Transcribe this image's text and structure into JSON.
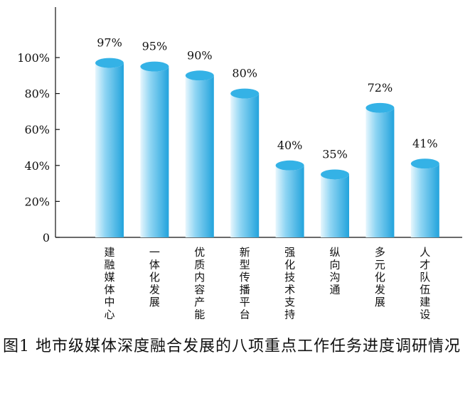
{
  "chart_data": {
    "type": "bar",
    "style": "3d-cylinder",
    "categories": [
      "建融媒体中心",
      "一体化发展",
      "优质内容产能",
      "新型传播平台",
      "强化技术支持",
      "纵向沟通",
      "多元化发展",
      "人才队伍建设"
    ],
    "values": [
      97,
      95,
      90,
      80,
      40,
      35,
      72,
      41
    ],
    "value_labels": [
      "97%",
      "95%",
      "90%",
      "80%",
      "40%",
      "35%",
      "72%",
      "41%"
    ],
    "y_ticks": [
      0,
      20,
      40,
      60,
      80,
      100
    ],
    "y_tick_labels": [
      "0",
      "20%",
      "40%",
      "60%",
      "80%",
      "100%"
    ],
    "ylim": [
      0,
      100
    ],
    "grid": false,
    "colors": {
      "bar_light": "#e6f6fd",
      "bar_mid": "#8fd5f3",
      "bar_dark": "#22a3dc",
      "bar_top": "#34b2e6",
      "axis": "#111111"
    }
  },
  "caption": {
    "text": "图1  地市级媒体深度融合发展的八项重点工作任务进度调研情况"
  }
}
